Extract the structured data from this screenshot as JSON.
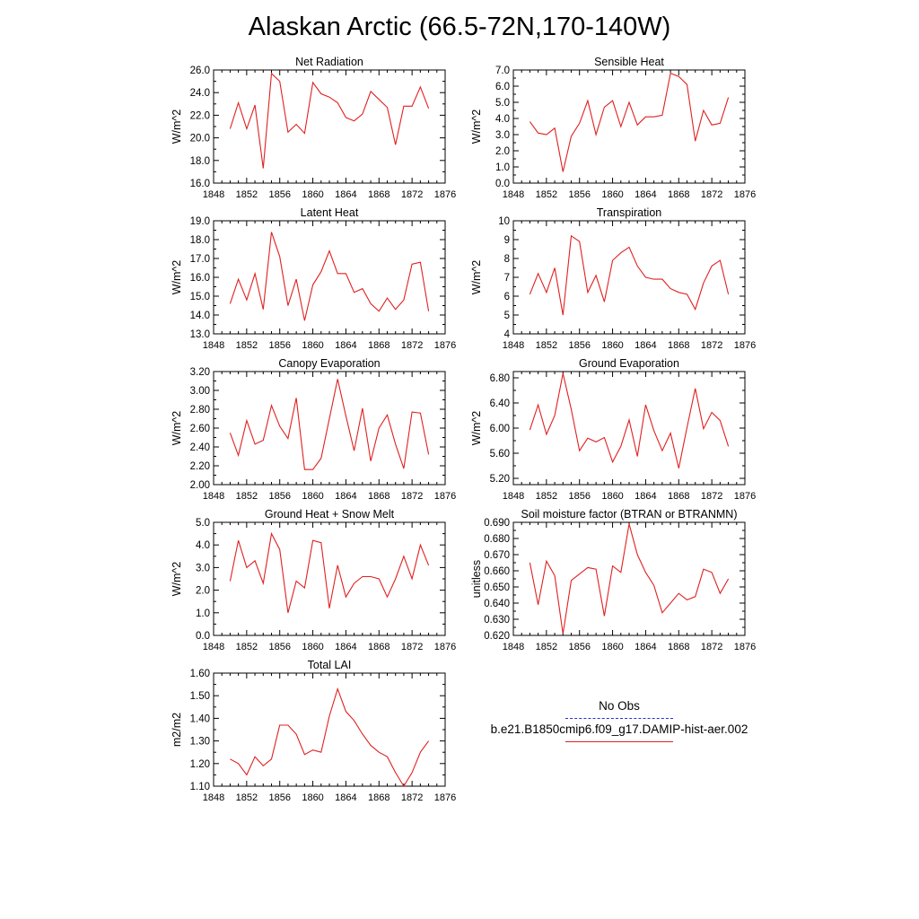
{
  "title": "Alaskan Arctic (66.5-72N,170-140W)",
  "legend": [
    {
      "label": "No Obs",
      "color": "#2b2bd6",
      "dash": true
    },
    {
      "label": "b.e21.B1850cmip6.f09_g17.DAMIP-hist-aer.002",
      "color": "#e02020",
      "dash": false
    }
  ],
  "chart_data": [
    {
      "type": "line",
      "title": "Net Radiation",
      "ylabel": "W/m^2",
      "xlim": [
        1848,
        1876
      ],
      "ylim": [
        16.0,
        26.0
      ],
      "xticks": [
        "1848",
        "1852",
        "1856",
        "1860",
        "1864",
        "1868",
        "1872",
        "1876"
      ],
      "yticks": [
        "16.0",
        "18.0",
        "20.0",
        "22.0",
        "24.0",
        "26.0"
      ],
      "series": [
        {
          "color": "#e02020",
          "x": [
            1850,
            1851,
            1852,
            1853,
            1854,
            1855,
            1856,
            1857,
            1858,
            1859,
            1860,
            1861,
            1862,
            1863,
            1864,
            1865,
            1866,
            1867,
            1868,
            1869,
            1870,
            1871,
            1872,
            1873,
            1874
          ],
          "values": [
            20.8,
            23.1,
            20.8,
            22.9,
            17.3,
            25.7,
            25.0,
            20.5,
            21.2,
            20.4,
            24.9,
            23.9,
            23.6,
            23.1,
            21.8,
            21.5,
            22.1,
            24.1,
            23.4,
            22.7,
            19.4,
            22.8,
            22.8,
            24.5,
            22.6
          ]
        }
      ]
    },
    {
      "type": "line",
      "title": "Sensible Heat",
      "ylabel": "W/m^2",
      "xlim": [
        1848,
        1876
      ],
      "ylim": [
        0.0,
        7.0
      ],
      "xticks": [
        "1848",
        "1852",
        "1856",
        "1860",
        "1864",
        "1868",
        "1872",
        "1876"
      ],
      "yticks": [
        "0.0",
        "1.0",
        "2.0",
        "3.0",
        "4.0",
        "5.0",
        "6.0",
        "7.0"
      ],
      "series": [
        {
          "color": "#e02020",
          "x": [
            1850,
            1851,
            1852,
            1853,
            1854,
            1855,
            1856,
            1857,
            1858,
            1859,
            1860,
            1861,
            1862,
            1863,
            1864,
            1865,
            1866,
            1867,
            1868,
            1869,
            1870,
            1871,
            1872,
            1873,
            1874
          ],
          "values": [
            3.8,
            3.1,
            3.0,
            3.4,
            0.7,
            2.9,
            3.7,
            5.1,
            3.0,
            4.7,
            5.1,
            3.5,
            5.0,
            3.6,
            4.1,
            4.1,
            4.2,
            6.8,
            6.6,
            6.1,
            2.6,
            4.5,
            3.6,
            3.7,
            5.3
          ]
        }
      ]
    },
    {
      "type": "line",
      "title": "Latent Heat",
      "ylabel": "W/m^2",
      "xlim": [
        1848,
        1876
      ],
      "ylim": [
        13.0,
        19.0
      ],
      "xticks": [
        "1848",
        "1852",
        "1856",
        "1860",
        "1864",
        "1868",
        "1872",
        "1876"
      ],
      "yticks": [
        "13.0",
        "14.0",
        "15.0",
        "16.0",
        "17.0",
        "18.0",
        "19.0"
      ],
      "series": [
        {
          "color": "#e02020",
          "x": [
            1850,
            1851,
            1852,
            1853,
            1854,
            1855,
            1856,
            1857,
            1858,
            1859,
            1860,
            1861,
            1862,
            1863,
            1864,
            1865,
            1866,
            1867,
            1868,
            1869,
            1870,
            1871,
            1872,
            1873,
            1874
          ],
          "values": [
            14.6,
            15.9,
            14.8,
            16.2,
            14.3,
            18.4,
            17.1,
            14.5,
            15.9,
            13.7,
            15.6,
            16.3,
            17.4,
            16.2,
            16.2,
            15.2,
            15.4,
            14.6,
            14.2,
            14.9,
            14.3,
            14.8,
            16.7,
            16.8,
            14.2
          ]
        }
      ]
    },
    {
      "type": "line",
      "title": "Transpiration",
      "ylabel": "W/m^2",
      "xlim": [
        1848,
        1876
      ],
      "ylim": [
        4,
        10
      ],
      "xticks": [
        "1848",
        "1852",
        "1856",
        "1860",
        "1864",
        "1868",
        "1872",
        "1876"
      ],
      "yticks": [
        "4",
        "5",
        "6",
        "7",
        "8",
        "9",
        "10"
      ],
      "series": [
        {
          "color": "#e02020",
          "x": [
            1850,
            1851,
            1852,
            1853,
            1854,
            1855,
            1856,
            1857,
            1858,
            1859,
            1860,
            1861,
            1862,
            1863,
            1864,
            1865,
            1866,
            1867,
            1868,
            1869,
            1870,
            1871,
            1872,
            1873,
            1874
          ],
          "values": [
            6.1,
            7.2,
            6.2,
            7.5,
            5.0,
            9.2,
            8.9,
            6.2,
            7.1,
            5.7,
            7.9,
            8.3,
            8.6,
            7.6,
            7.0,
            6.9,
            6.9,
            6.4,
            6.2,
            6.1,
            5.3,
            6.7,
            7.6,
            7.9,
            6.1
          ]
        }
      ]
    },
    {
      "type": "line",
      "title": "Canopy Evaporation",
      "ylabel": "W/m^2",
      "xlim": [
        1848,
        1876
      ],
      "ylim": [
        2.0,
        3.2
      ],
      "xticks": [
        "1848",
        "1852",
        "1856",
        "1860",
        "1864",
        "1868",
        "1872",
        "1876"
      ],
      "yticks": [
        "2.00",
        "2.20",
        "2.40",
        "2.60",
        "2.80",
        "3.00",
        "3.20"
      ],
      "series": [
        {
          "color": "#e02020",
          "x": [
            1850,
            1851,
            1852,
            1853,
            1854,
            1855,
            1856,
            1857,
            1858,
            1859,
            1860,
            1861,
            1862,
            1863,
            1864,
            1865,
            1866,
            1867,
            1868,
            1869,
            1870,
            1871,
            1872,
            1873,
            1874
          ],
          "values": [
            2.55,
            2.31,
            2.68,
            2.43,
            2.47,
            2.84,
            2.62,
            2.49,
            2.92,
            2.16,
            2.16,
            2.28,
            2.7,
            3.12,
            2.73,
            2.36,
            2.81,
            2.25,
            2.6,
            2.74,
            2.43,
            2.17,
            2.77,
            2.76,
            2.32
          ]
        }
      ]
    },
    {
      "type": "line",
      "title": "Ground Evaporation",
      "ylabel": "W/m^2",
      "xlim": [
        1848,
        1876
      ],
      "ylim": [
        5.1,
        6.9
      ],
      "xticks": [
        "1848",
        "1852",
        "1856",
        "1860",
        "1864",
        "1868",
        "1872",
        "1876"
      ],
      "yticks": [
        "5.20",
        "5.60",
        "6.00",
        "6.40",
        "6.80"
      ],
      "series": [
        {
          "color": "#e02020",
          "x": [
            1850,
            1851,
            1852,
            1853,
            1854,
            1855,
            1856,
            1857,
            1858,
            1859,
            1860,
            1861,
            1862,
            1863,
            1864,
            1865,
            1866,
            1867,
            1868,
            1869,
            1870,
            1871,
            1872,
            1873,
            1874
          ],
          "values": [
            5.97,
            6.37,
            5.9,
            6.2,
            6.87,
            6.3,
            5.64,
            5.84,
            5.78,
            5.85,
            5.46,
            5.71,
            6.13,
            5.55,
            6.37,
            5.96,
            5.64,
            5.92,
            5.36,
            6.01,
            6.63,
            5.99,
            6.25,
            6.12,
            5.71
          ]
        }
      ]
    },
    {
      "type": "line",
      "title": "Ground Heat + Snow Melt",
      "ylabel": "W/m^2",
      "xlim": [
        1848,
        1876
      ],
      "ylim": [
        0.0,
        5.0
      ],
      "xticks": [
        "1848",
        "1852",
        "1856",
        "1860",
        "1864",
        "1868",
        "1872",
        "1876"
      ],
      "yticks": [
        "0.0",
        "1.0",
        "2.0",
        "3.0",
        "4.0",
        "5.0"
      ],
      "series": [
        {
          "color": "#e02020",
          "x": [
            1850,
            1851,
            1852,
            1853,
            1854,
            1855,
            1856,
            1857,
            1858,
            1859,
            1860,
            1861,
            1862,
            1863,
            1864,
            1865,
            1866,
            1867,
            1868,
            1869,
            1870,
            1871,
            1872,
            1873,
            1874
          ],
          "values": [
            2.4,
            4.2,
            3.0,
            3.3,
            2.3,
            4.5,
            3.8,
            1.0,
            2.4,
            2.1,
            4.2,
            4.1,
            1.2,
            3.1,
            1.7,
            2.3,
            2.6,
            2.6,
            2.5,
            1.7,
            2.5,
            3.5,
            2.5,
            4.0,
            3.1
          ]
        }
      ]
    },
    {
      "type": "line",
      "title": "Soil moisture factor (BTRAN or BTRANMN)",
      "ylabel": "unitless",
      "xlim": [
        1848,
        1876
      ],
      "ylim": [
        0.62,
        0.69
      ],
      "xticks": [
        "1848",
        "1852",
        "1856",
        "1860",
        "1864",
        "1868",
        "1872",
        "1876"
      ],
      "yticks": [
        "0.620",
        "0.630",
        "0.640",
        "0.650",
        "0.660",
        "0.670",
        "0.680",
        "0.690"
      ],
      "series": [
        {
          "color": "#e02020",
          "x": [
            1850,
            1851,
            1852,
            1853,
            1854,
            1855,
            1856,
            1857,
            1858,
            1859,
            1860,
            1861,
            1862,
            1863,
            1864,
            1865,
            1866,
            1867,
            1868,
            1869,
            1870,
            1871,
            1872,
            1873,
            1874
          ],
          "values": [
            0.665,
            0.639,
            0.666,
            0.657,
            0.621,
            0.654,
            0.658,
            0.662,
            0.661,
            0.632,
            0.663,
            0.659,
            0.689,
            0.67,
            0.659,
            0.651,
            0.634,
            0.64,
            0.646,
            0.642,
            0.644,
            0.661,
            0.659,
            0.646,
            0.655
          ]
        }
      ]
    },
    {
      "type": "line",
      "title": "Total LAI",
      "ylabel": "m2/m2",
      "xlim": [
        1848,
        1876
      ],
      "ylim": [
        1.1,
        1.6
      ],
      "xticks": [
        "1848",
        "1852",
        "1856",
        "1860",
        "1864",
        "1868",
        "1872",
        "1876"
      ],
      "yticks": [
        "1.10",
        "1.20",
        "1.30",
        "1.40",
        "1.50",
        "1.60"
      ],
      "series": [
        {
          "color": "#e02020",
          "x": [
            1850,
            1851,
            1852,
            1853,
            1854,
            1855,
            1856,
            1857,
            1858,
            1859,
            1860,
            1861,
            1862,
            1863,
            1864,
            1865,
            1866,
            1867,
            1868,
            1869,
            1870,
            1871,
            1872,
            1873,
            1874
          ],
          "values": [
            1.22,
            1.2,
            1.15,
            1.23,
            1.19,
            1.22,
            1.37,
            1.37,
            1.33,
            1.24,
            1.26,
            1.25,
            1.41,
            1.53,
            1.43,
            1.39,
            1.33,
            1.28,
            1.25,
            1.23,
            1.16,
            1.1,
            1.16,
            1.25,
            1.3
          ]
        }
      ]
    }
  ]
}
